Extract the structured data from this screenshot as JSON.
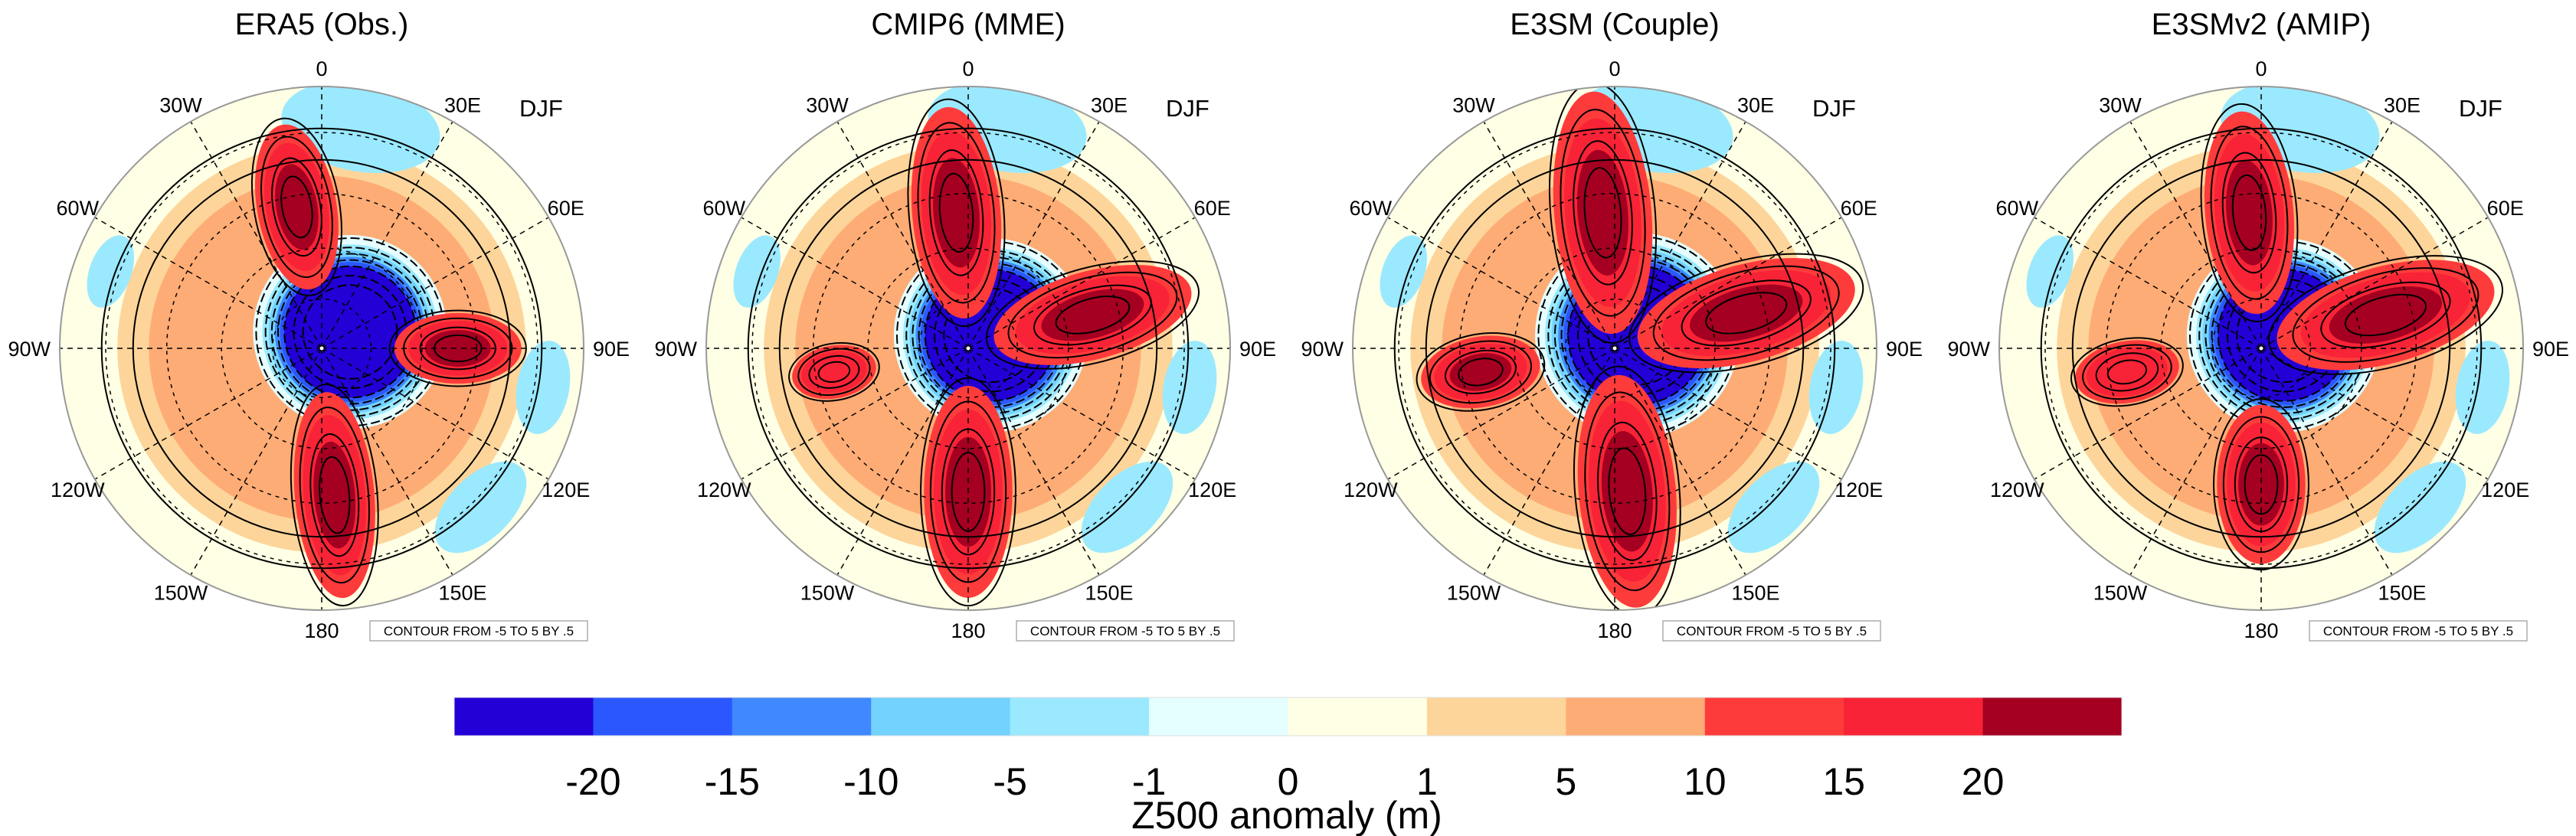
{
  "chart_data": {
    "type": "heatmap",
    "projection": "south-polar-stereographic",
    "variable": "Z500 anomaly",
    "units": "m",
    "season": "DJF",
    "panels": [
      {
        "title": "ERA5 (Obs.)",
        "season_label": "DJF",
        "contour_note": "CONTOUR FROM -5 TO 5 BY .5",
        "features": [
          {
            "kind": "low",
            "name": "polar-low",
            "lon": 60,
            "lat_center": -80,
            "radius_deg": 19,
            "stretch": 1.0,
            "value": -25
          },
          {
            "kind": "high",
            "name": "atlantic-high",
            "lon": -10,
            "lat_center": -48,
            "radius_deg": 9,
            "stretch": 2.1,
            "value": 22
          },
          {
            "kind": "high",
            "name": "indian-high",
            "lon": 90,
            "lat_center": -50,
            "radius_deg": 8,
            "stretch": 1.8,
            "value": 21
          },
          {
            "kind": "high",
            "name": "pacific-high",
            "lon": 175,
            "lat_center": -47,
            "radius_deg": 9,
            "stretch": 2.6,
            "value": 22
          }
        ]
      },
      {
        "title": "CMIP6 (MME)",
        "season_label": "DJF",
        "contour_note": "CONTOUR FROM -5 TO 5 BY .5",
        "features": [
          {
            "kind": "low",
            "name": "polar-low",
            "lon": 60,
            "lat_center": -82,
            "radius_deg": 19,
            "stretch": 1.0,
            "value": -25
          },
          {
            "kind": "high",
            "name": "atlantic-high",
            "lon": -5,
            "lat_center": -50,
            "radius_deg": 10,
            "stretch": 2.4,
            "value": 22
          },
          {
            "kind": "high",
            "name": "indian-high",
            "lon": 75,
            "lat_center": -52,
            "radius_deg": 10,
            "stretch": 2.3,
            "value": 22
          },
          {
            "kind": "high",
            "name": "pacific-high",
            "lon": 180,
            "lat_center": -48,
            "radius_deg": 10,
            "stretch": 2.4,
            "value": 22
          },
          {
            "kind": "high",
            "name": "se-pacific-high",
            "lon": -100,
            "lat_center": -50,
            "radius_deg": 6,
            "stretch": 1.6,
            "value": 17
          }
        ]
      },
      {
        "title": "E3SM (Couple)",
        "season_label": "DJF",
        "contour_note": "CONTOUR FROM -5 TO 5 BY .5",
        "features": [
          {
            "kind": "low",
            "name": "polar-low",
            "lon": 60,
            "lat_center": -82,
            "radius_deg": 20,
            "stretch": 1.0,
            "value": -25
          },
          {
            "kind": "high",
            "name": "atlantic-high",
            "lon": -5,
            "lat_center": -50,
            "radius_deg": 11,
            "stretch": 2.5,
            "value": 24
          },
          {
            "kind": "high",
            "name": "indian-high",
            "lon": 75,
            "lat_center": -50,
            "radius_deg": 11,
            "stretch": 2.3,
            "value": 24
          },
          {
            "kind": "high",
            "name": "pacific-high",
            "lon": 175,
            "lat_center": -48,
            "radius_deg": 11,
            "stretch": 2.4,
            "value": 24
          },
          {
            "kind": "high",
            "name": "se-pacific-high",
            "lon": -100,
            "lat_center": -50,
            "radius_deg": 8,
            "stretch": 1.7,
            "value": 21
          }
        ]
      },
      {
        "title": "E3SMv2 (AMIP)",
        "season_label": "DJF",
        "contour_note": "CONTOUR FROM -5 TO 5 BY .5",
        "features": [
          {
            "kind": "low",
            "name": "polar-low",
            "lon": 60,
            "lat_center": -82,
            "radius_deg": 19,
            "stretch": 1.0,
            "value": -25
          },
          {
            "kind": "high",
            "name": "atlantic-high",
            "lon": -5,
            "lat_center": -50,
            "radius_deg": 10,
            "stretch": 2.3,
            "value": 23
          },
          {
            "kind": "high",
            "name": "indian-high",
            "lon": 75,
            "lat_center": -52,
            "radius_deg": 11,
            "stretch": 2.3,
            "value": 23
          },
          {
            "kind": "high",
            "name": "pacific-high",
            "lon": 180,
            "lat_center": -50,
            "radius_deg": 10,
            "stretch": 1.8,
            "value": 24
          },
          {
            "kind": "high",
            "name": "se-pacific-high",
            "lon": -100,
            "lat_center": -50,
            "radius_deg": 7,
            "stretch": 1.7,
            "value": 17
          }
        ]
      }
    ],
    "lon_labels": [
      "0",
      "30E",
      "60E",
      "90E",
      "120E",
      "150E",
      "180",
      "150W",
      "120W",
      "90W",
      "60W",
      "30W"
    ],
    "lat_circles": [
      -30,
      -45,
      -60,
      -75
    ],
    "lat_range": [
      -90,
      -20
    ],
    "colorbar": {
      "title": "Z500 anomaly (m)",
      "levels": [
        -20,
        -15,
        -10,
        -5,
        -1,
        0,
        1,
        5,
        10,
        15,
        20
      ],
      "tick_labels": [
        "-20",
        "-15",
        "-10",
        "-5",
        "-1",
        "0",
        "1",
        "5",
        "10",
        "15",
        "20"
      ],
      "colors": [
        "#2200D6",
        "#2B57FF",
        "#3F88FF",
        "#73D2FE",
        "#9BE9FF",
        "#E5FEFF",
        "#FFFFE5",
        "#FDD59A",
        "#FEAC75",
        "#FE3B3B",
        "#F82336",
        "#A50021"
      ],
      "orientation": "horizontal",
      "placement": "bottom"
    }
  }
}
